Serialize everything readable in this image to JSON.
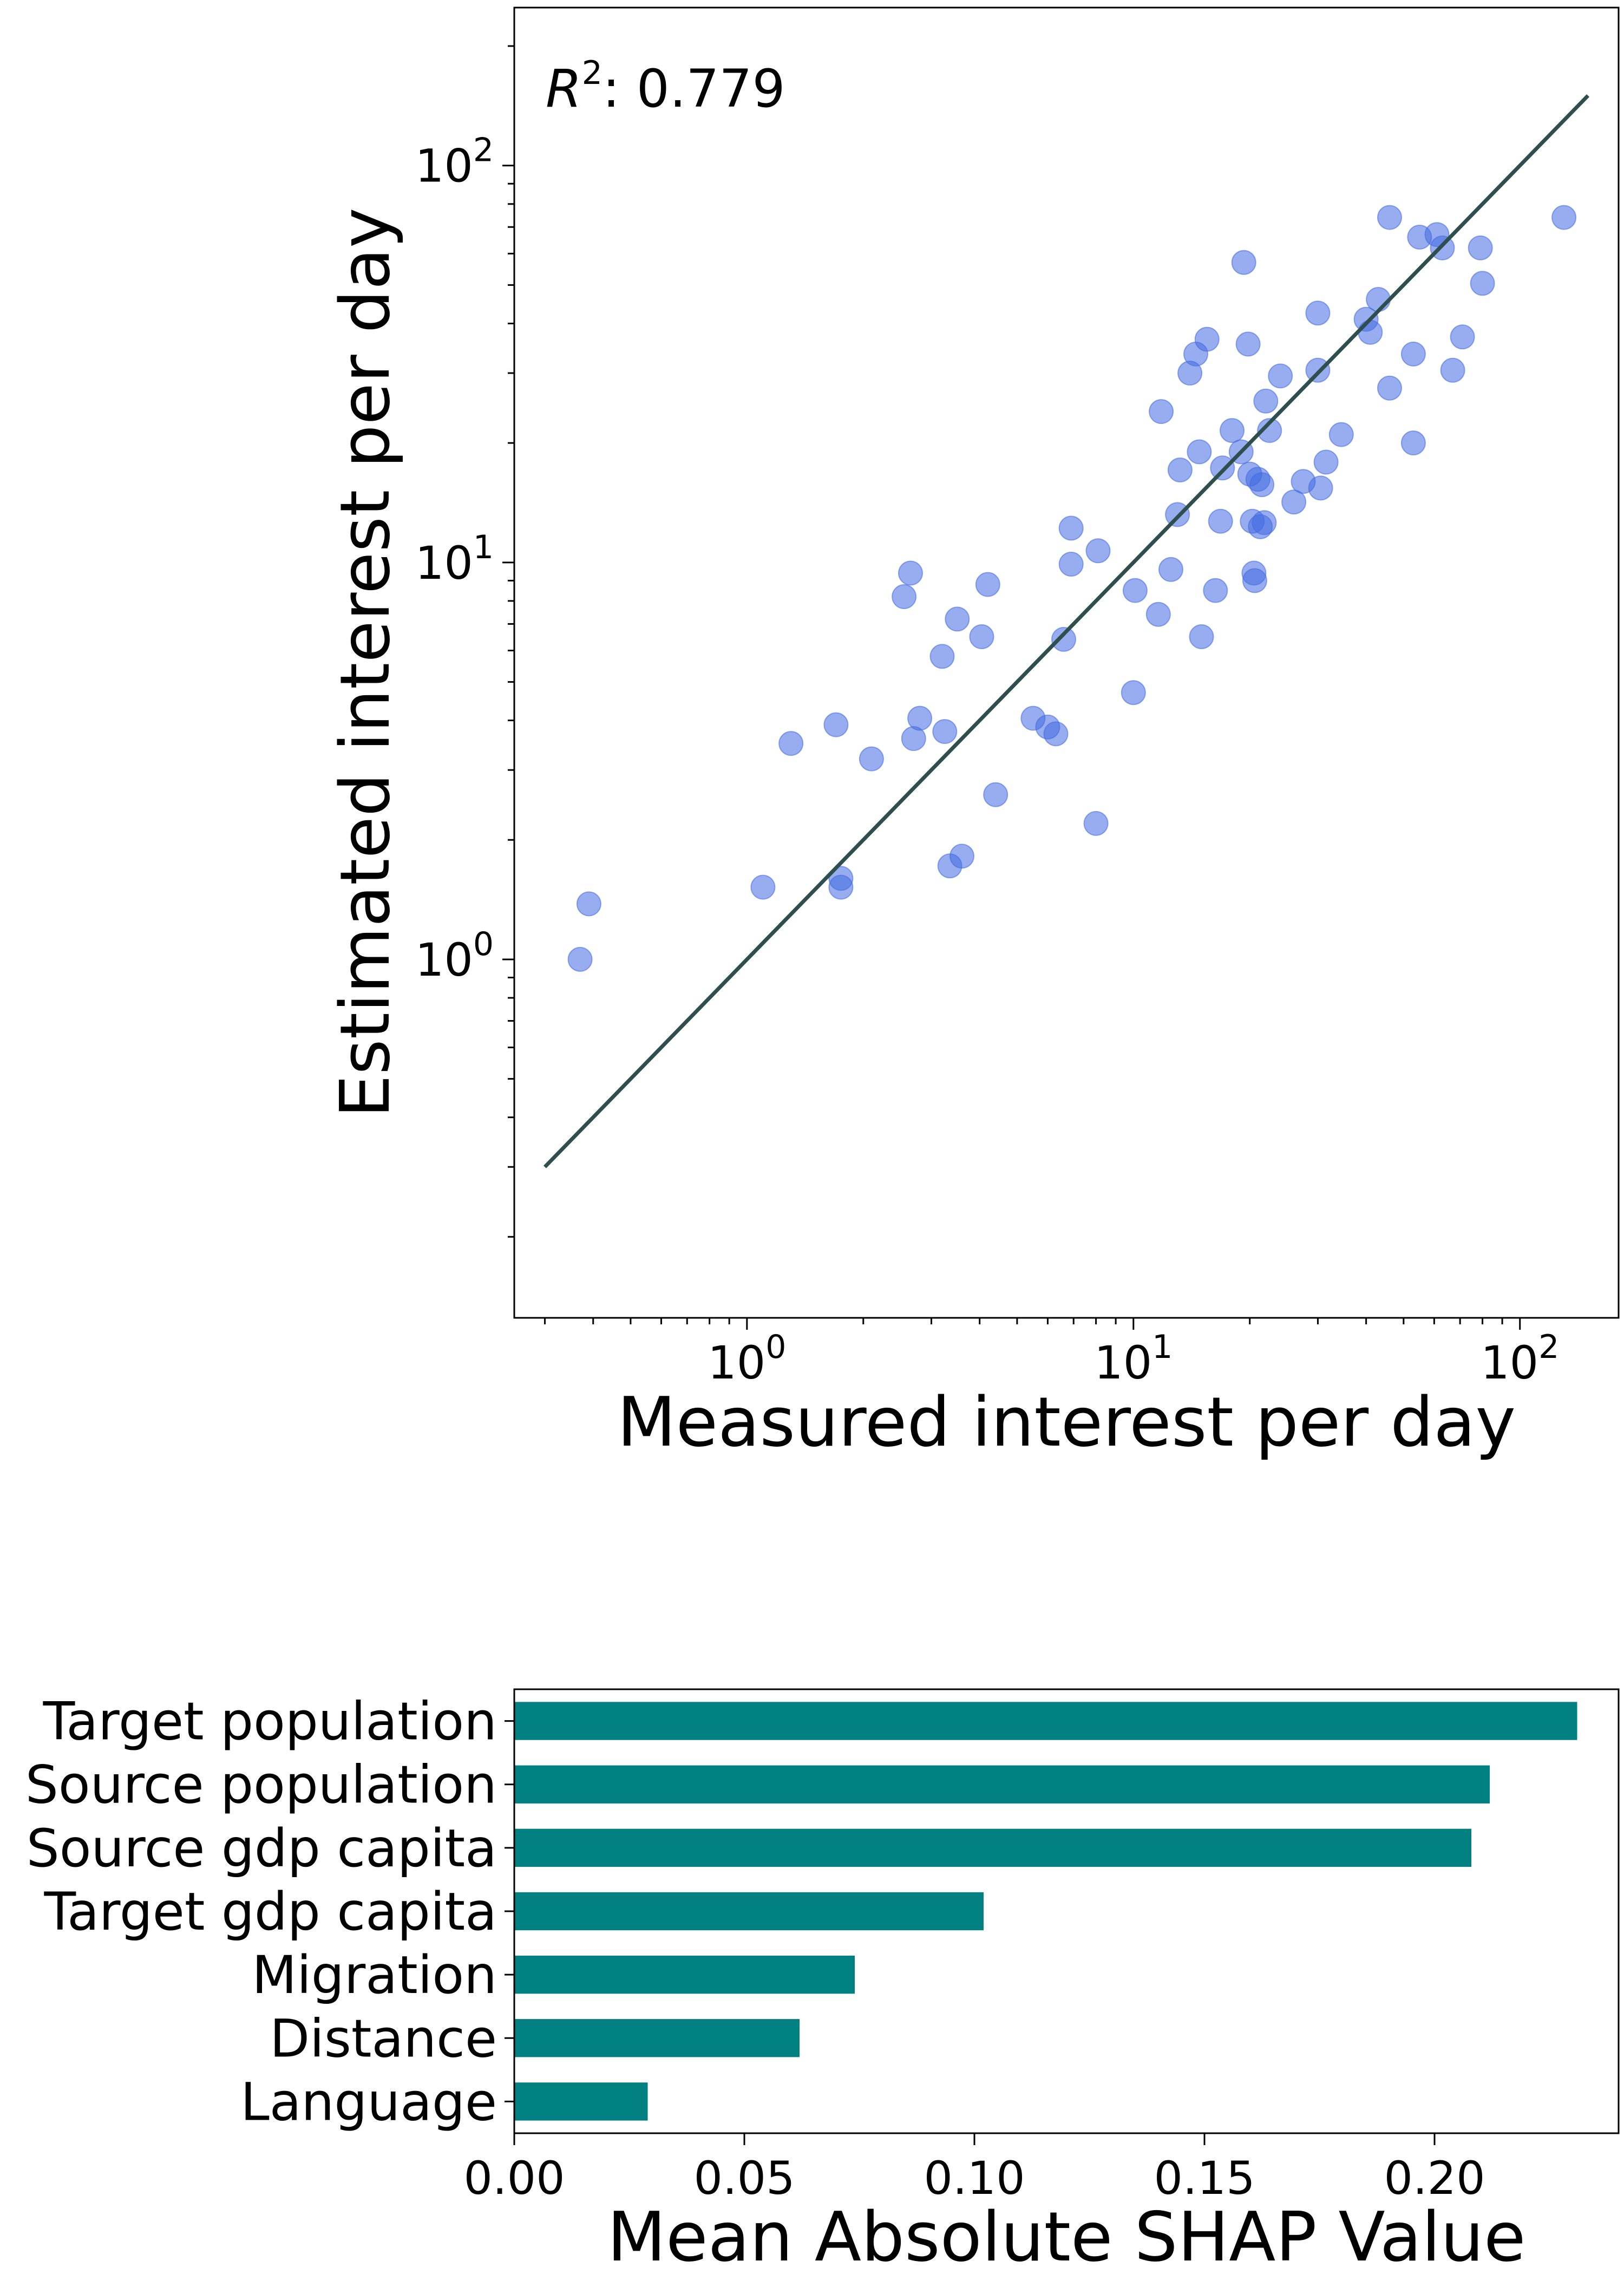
{
  "chart_data": [
    {
      "type": "scatter",
      "title": "",
      "xlabel": "Measured interest per day",
      "ylabel": "Estimated interest per day",
      "x_scale": "log",
      "y_scale": "log",
      "xlim": [
        0.25,
        180
      ],
      "ylim": [
        0.125,
        250
      ],
      "x_ticks": [
        {
          "value": 1,
          "base": "10",
          "exp": "0"
        },
        {
          "value": 10,
          "base": "10",
          "exp": "1"
        },
        {
          "value": 100,
          "base": "10",
          "exp": "2"
        }
      ],
      "y_ticks": [
        {
          "value": 1,
          "base": "10",
          "exp": "0"
        },
        {
          "value": 10,
          "base": "10",
          "exp": "1"
        },
        {
          "value": 100,
          "base": "10",
          "exp": "2"
        }
      ],
      "annotation": {
        "prefix": "R",
        "exp": "2",
        "text": ": 0.779"
      },
      "grid": false,
      "point_color": "#4169e1",
      "line_color": "#2f4f4f",
      "fit_line": {
        "x": [
          0.3,
          150
        ],
        "y": [
          0.3,
          150
        ]
      },
      "points": [
        {
          "x": 0.37,
          "y": 1.0
        },
        {
          "x": 0.39,
          "y": 1.38
        },
        {
          "x": 1.1,
          "y": 1.52
        },
        {
          "x": 1.3,
          "y": 3.5
        },
        {
          "x": 1.7,
          "y": 3.9
        },
        {
          "x": 1.75,
          "y": 1.52
        },
        {
          "x": 1.75,
          "y": 1.6
        },
        {
          "x": 2.1,
          "y": 3.2
        },
        {
          "x": 2.55,
          "y": 8.2
        },
        {
          "x": 2.65,
          "y": 9.4
        },
        {
          "x": 2.7,
          "y": 3.6
        },
        {
          "x": 2.8,
          "y": 4.05
        },
        {
          "x": 3.2,
          "y": 5.8
        },
        {
          "x": 3.25,
          "y": 3.75
        },
        {
          "x": 3.35,
          "y": 1.72
        },
        {
          "x": 3.5,
          "y": 7.2
        },
        {
          "x": 3.6,
          "y": 1.82
        },
        {
          "x": 4.05,
          "y": 6.5
        },
        {
          "x": 4.2,
          "y": 8.8
        },
        {
          "x": 4.4,
          "y": 2.6
        },
        {
          "x": 5.5,
          "y": 4.05
        },
        {
          "x": 6.0,
          "y": 3.85
        },
        {
          "x": 6.3,
          "y": 3.7
        },
        {
          "x": 6.6,
          "y": 6.4
        },
        {
          "x": 6.9,
          "y": 12.2
        },
        {
          "x": 6.9,
          "y": 9.9
        },
        {
          "x": 8.0,
          "y": 2.2
        },
        {
          "x": 8.1,
          "y": 10.7
        },
        {
          "x": 10.0,
          "y": 4.7
        },
        {
          "x": 10.1,
          "y": 8.5
        },
        {
          "x": 11.6,
          "y": 7.4
        },
        {
          "x": 11.8,
          "y": 24.0
        },
        {
          "x": 12.5,
          "y": 9.6
        },
        {
          "x": 13.0,
          "y": 13.2
        },
        {
          "x": 13.2,
          "y": 17.1
        },
        {
          "x": 14.0,
          "y": 30.0
        },
        {
          "x": 14.5,
          "y": 33.5
        },
        {
          "x": 14.8,
          "y": 19.0
        },
        {
          "x": 15.0,
          "y": 6.5
        },
        {
          "x": 15.5,
          "y": 36.5
        },
        {
          "x": 16.3,
          "y": 8.5
        },
        {
          "x": 16.8,
          "y": 12.7
        },
        {
          "x": 17.0,
          "y": 17.3
        },
        {
          "x": 18.0,
          "y": 21.5
        },
        {
          "x": 19.0,
          "y": 19.0
        },
        {
          "x": 19.3,
          "y": 57.0
        },
        {
          "x": 19.8,
          "y": 35.5
        },
        {
          "x": 20.0,
          "y": 16.7
        },
        {
          "x": 20.3,
          "y": 12.7
        },
        {
          "x": 20.5,
          "y": 9.4
        },
        {
          "x": 20.6,
          "y": 9.0
        },
        {
          "x": 21.0,
          "y": 16.2
        },
        {
          "x": 21.3,
          "y": 12.3
        },
        {
          "x": 21.5,
          "y": 15.7
        },
        {
          "x": 21.8,
          "y": 12.6
        },
        {
          "x": 22.0,
          "y": 25.5
        },
        {
          "x": 22.5,
          "y": 21.5
        },
        {
          "x": 24.0,
          "y": 29.5
        },
        {
          "x": 26.0,
          "y": 14.2
        },
        {
          "x": 27.5,
          "y": 16.0
        },
        {
          "x": 30.0,
          "y": 42.5
        },
        {
          "x": 30.0,
          "y": 30.5
        },
        {
          "x": 30.5,
          "y": 15.4
        },
        {
          "x": 31.5,
          "y": 17.9
        },
        {
          "x": 34.5,
          "y": 21.0
        },
        {
          "x": 40.0,
          "y": 41.0
        },
        {
          "x": 41.0,
          "y": 38.0
        },
        {
          "x": 43.0,
          "y": 46.0
        },
        {
          "x": 46.0,
          "y": 74.0
        },
        {
          "x": 46.0,
          "y": 27.5
        },
        {
          "x": 53.0,
          "y": 20.0
        },
        {
          "x": 53.0,
          "y": 33.5
        },
        {
          "x": 55.0,
          "y": 66.0
        },
        {
          "x": 61.0,
          "y": 67.0
        },
        {
          "x": 63.0,
          "y": 62.0
        },
        {
          "x": 67.0,
          "y": 30.5
        },
        {
          "x": 71.0,
          "y": 37.0
        },
        {
          "x": 79.0,
          "y": 62.0
        },
        {
          "x": 80.0,
          "y": 50.5
        },
        {
          "x": 130.0,
          "y": 74.0
        }
      ]
    },
    {
      "type": "bar",
      "orientation": "horizontal",
      "title": "",
      "xlabel": "Mean Absolute SHAP Value",
      "ylabel": "",
      "bar_color": "#008080",
      "xlim": [
        0.0,
        0.24
      ],
      "x_ticks": [
        "0.00",
        "0.05",
        "0.10",
        "0.15",
        "0.20"
      ],
      "categories": [
        "Target population",
        "Source population",
        "Source gdp capita",
        "Target gdp capita",
        "Migration",
        "Distance",
        "Language"
      ],
      "values": [
        0.231,
        0.212,
        0.208,
        0.102,
        0.074,
        0.062,
        0.029
      ]
    }
  ]
}
